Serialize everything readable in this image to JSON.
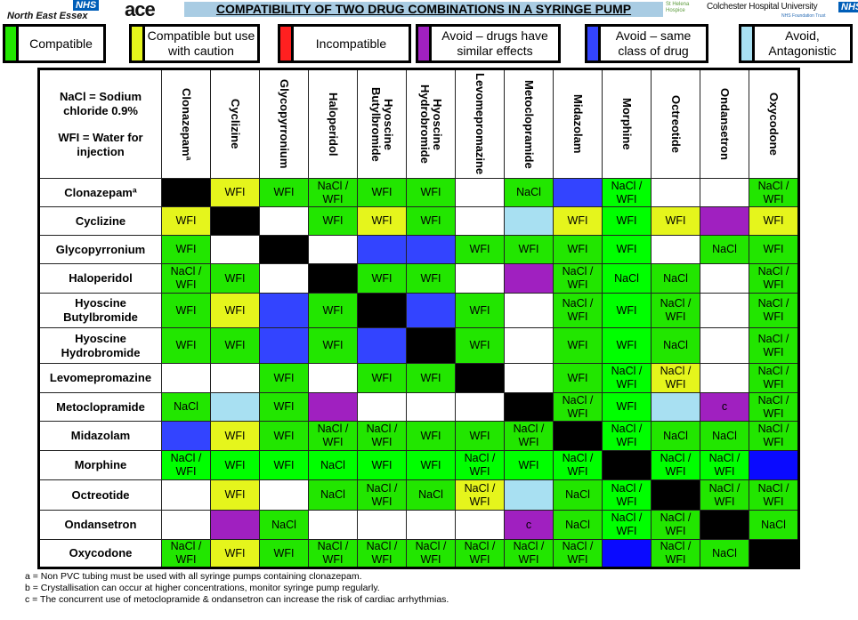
{
  "header": {
    "nhs_badge": "NHS",
    "org_left": "North East Essex",
    "ace_logo": "ace",
    "title": "COMPATIBILITY OF TWO DRUG COMBINATIONS IN A SYRINGE PUMP",
    "hospice": "St Helena Hospice",
    "hospital": "Colchester Hospital University",
    "hospital_sub": "NHS Foundation Trust",
    "nhs_badge_right": "NHS"
  },
  "colors": {
    "g": "#22e600",
    "G": "#00ff00",
    "y": "#e5f51c",
    "r": "#ff2020",
    "p": "#a020c0",
    "b": "#3344ff",
    "B": "#0a0aff",
    "l": "#a8e0f2",
    "k": "#000000",
    "w": "#ffffff"
  },
  "legend": [
    {
      "color": "#22e600",
      "label": "Compatible"
    },
    {
      "color": "#e5f51c",
      "label": "Compatible but use with caution"
    },
    {
      "color": "#ff2020",
      "label": "Incompatible"
    },
    {
      "color": "#a020c0",
      "label": "Avoid – drugs have similar  effects"
    },
    {
      "color": "#3344ff",
      "label": "Avoid – same class of drug"
    },
    {
      "color": "#a8e0f2",
      "label": "Avoid, Antagonistic"
    }
  ],
  "table": {
    "corner_line1": "NaCl = Sodium chloride 0.9%",
    "corner_line2": "WFI = Water for injection",
    "columns": [
      "Clonazepamª",
      "Cyclizine",
      "Glycopyrronium",
      "Haloperidol",
      "Hyoscine\nButylbromide",
      "Hyoscine\nHydrobromide",
      "Levomepromazine",
      "Metoclopramide",
      "Midazolam",
      "Morphine",
      "Octreotide",
      "Ondansetron",
      "Oxycodone"
    ],
    "rows": [
      {
        "drug": "Clonazepamª",
        "cells": [
          [
            "k",
            ""
          ],
          [
            "y",
            "WFI"
          ],
          [
            "g",
            "WFI"
          ],
          [
            "g",
            "NaCl /\nWFI"
          ],
          [
            "g",
            "WFI"
          ],
          [
            "g",
            "WFI"
          ],
          [
            "w",
            ""
          ],
          [
            "g",
            "NaCl"
          ],
          [
            "b",
            ""
          ],
          [
            "G",
            "NaCl /\nWFI"
          ],
          [
            "w",
            ""
          ],
          [
            "w",
            ""
          ],
          [
            "g",
            "NaCl /\nWFI"
          ]
        ]
      },
      {
        "drug": "Cyclizine",
        "cells": [
          [
            "y",
            "WFI"
          ],
          [
            "k",
            ""
          ],
          [
            "w",
            ""
          ],
          [
            "g",
            "WFI"
          ],
          [
            "y",
            "WFI"
          ],
          [
            "g",
            "WFI"
          ],
          [
            "w",
            ""
          ],
          [
            "l",
            ""
          ],
          [
            "y",
            "WFI"
          ],
          [
            "G",
            "WFI"
          ],
          [
            "y",
            "WFI"
          ],
          [
            "p",
            ""
          ],
          [
            "y",
            "WFI"
          ]
        ]
      },
      {
        "drug": "Glycopyrronium",
        "cells": [
          [
            "g",
            "WFI"
          ],
          [
            "w",
            ""
          ],
          [
            "k",
            ""
          ],
          [
            "w",
            ""
          ],
          [
            "b",
            ""
          ],
          [
            "b",
            ""
          ],
          [
            "g",
            "WFI"
          ],
          [
            "g",
            "WFI"
          ],
          [
            "g",
            "WFI"
          ],
          [
            "G",
            "WFI"
          ],
          [
            "w",
            ""
          ],
          [
            "g",
            "NaCl"
          ],
          [
            "g",
            "WFI"
          ]
        ]
      },
      {
        "drug": "Haloperidol",
        "cells": [
          [
            "g",
            "NaCl /\nWFI"
          ],
          [
            "g",
            "WFI"
          ],
          [
            "w",
            ""
          ],
          [
            "k",
            ""
          ],
          [
            "g",
            "WFI"
          ],
          [
            "g",
            "WFI"
          ],
          [
            "w",
            ""
          ],
          [
            "p",
            ""
          ],
          [
            "g",
            "NaCl /\nWFI"
          ],
          [
            "G",
            "NaCl"
          ],
          [
            "g",
            "NaCl"
          ],
          [
            "w",
            ""
          ],
          [
            "g",
            "NaCl /\nWFI"
          ]
        ]
      },
      {
        "drug": "Hyoscine\nButylbromide",
        "cells": [
          [
            "g",
            "WFI"
          ],
          [
            "y",
            "WFI"
          ],
          [
            "b",
            ""
          ],
          [
            "g",
            "WFI"
          ],
          [
            "k",
            ""
          ],
          [
            "b",
            ""
          ],
          [
            "g",
            "WFI"
          ],
          [
            "w",
            ""
          ],
          [
            "g",
            "NaCl /\nWFI"
          ],
          [
            "G",
            "WFI"
          ],
          [
            "g",
            "NaCl /\nWFI"
          ],
          [
            "w",
            ""
          ],
          [
            "g",
            "NaCl /\nWFI"
          ]
        ]
      },
      {
        "drug": "Hyoscine\nHydrobromide",
        "cells": [
          [
            "g",
            "WFI"
          ],
          [
            "g",
            "WFI"
          ],
          [
            "b",
            ""
          ],
          [
            "g",
            "WFI"
          ],
          [
            "b",
            ""
          ],
          [
            "k",
            ""
          ],
          [
            "g",
            "WFI"
          ],
          [
            "w",
            ""
          ],
          [
            "g",
            "WFI"
          ],
          [
            "G",
            "WFI"
          ],
          [
            "g",
            "NaCl"
          ],
          [
            "w",
            ""
          ],
          [
            "g",
            "NaCl /\nWFI"
          ]
        ]
      },
      {
        "drug": "Levomepromazine",
        "cells": [
          [
            "w",
            ""
          ],
          [
            "w",
            ""
          ],
          [
            "g",
            "WFI"
          ],
          [
            "w",
            ""
          ],
          [
            "g",
            "WFI"
          ],
          [
            "g",
            "WFI"
          ],
          [
            "k",
            ""
          ],
          [
            "w",
            ""
          ],
          [
            "g",
            "WFI"
          ],
          [
            "G",
            "NaCl /\nWFI"
          ],
          [
            "y",
            "NaCl /\nWFI"
          ],
          [
            "w",
            ""
          ],
          [
            "g",
            "NaCl /\nWFI"
          ]
        ]
      },
      {
        "drug": "Metoclopramide",
        "cells": [
          [
            "g",
            "NaCl"
          ],
          [
            "l",
            ""
          ],
          [
            "g",
            "WFI"
          ],
          [
            "p",
            ""
          ],
          [
            "w",
            ""
          ],
          [
            "w",
            ""
          ],
          [
            "w",
            ""
          ],
          [
            "k",
            ""
          ],
          [
            "g",
            "NaCl /\nWFI"
          ],
          [
            "G",
            "WFI"
          ],
          [
            "l",
            ""
          ],
          [
            "p",
            "c"
          ],
          [
            "g",
            "NaCl /\nWFI"
          ]
        ]
      },
      {
        "drug": "Midazolam",
        "cells": [
          [
            "b",
            ""
          ],
          [
            "y",
            "WFI"
          ],
          [
            "g",
            "WFI"
          ],
          [
            "g",
            "NaCl /\nWFI"
          ],
          [
            "g",
            "NaCl /\nWFI"
          ],
          [
            "g",
            "WFI"
          ],
          [
            "g",
            "WFI"
          ],
          [
            "g",
            "NaCl /\nWFI"
          ],
          [
            "k",
            ""
          ],
          [
            "G",
            "NaCl /\nWFI"
          ],
          [
            "g",
            "NaCl"
          ],
          [
            "g",
            "NaCl"
          ],
          [
            "g",
            "NaCl /\nWFI"
          ]
        ]
      },
      {
        "drug": "Morphine",
        "cells": [
          [
            "G",
            "NaCl /\nWFI"
          ],
          [
            "G",
            "WFI"
          ],
          [
            "G",
            "WFI"
          ],
          [
            "G",
            "NaCl"
          ],
          [
            "G",
            "WFI"
          ],
          [
            "G",
            "WFI"
          ],
          [
            "G",
            "NaCl /\nWFI"
          ],
          [
            "G",
            "WFI"
          ],
          [
            "G",
            "NaCl /\nWFI"
          ],
          [
            "k",
            ""
          ],
          [
            "G",
            "NaCl /\nWFI"
          ],
          [
            "G",
            "NaCl /\nWFI"
          ],
          [
            "B",
            ""
          ]
        ]
      },
      {
        "drug": "Octreotide",
        "cells": [
          [
            "w",
            ""
          ],
          [
            "y",
            "WFI"
          ],
          [
            "w",
            ""
          ],
          [
            "g",
            "NaCl"
          ],
          [
            "g",
            "NaCl /\nWFI"
          ],
          [
            "g",
            "NaCl"
          ],
          [
            "y",
            "NaCl /\nWFI"
          ],
          [
            "l",
            ""
          ],
          [
            "g",
            "NaCl"
          ],
          [
            "G",
            "NaCl /\nWFI"
          ],
          [
            "k",
            ""
          ],
          [
            "g",
            "NaCl /\nWFI"
          ],
          [
            "g",
            "NaCl /\nWFI"
          ]
        ]
      },
      {
        "drug": "Ondansetron",
        "cells": [
          [
            "w",
            ""
          ],
          [
            "p",
            ""
          ],
          [
            "g",
            "NaCl"
          ],
          [
            "w",
            ""
          ],
          [
            "w",
            ""
          ],
          [
            "w",
            ""
          ],
          [
            "w",
            ""
          ],
          [
            "p",
            "c"
          ],
          [
            "g",
            "NaCl"
          ],
          [
            "G",
            "NaCl /\nWFI"
          ],
          [
            "g",
            "NaCl /\nWFI"
          ],
          [
            "k",
            ""
          ],
          [
            "g",
            "NaCl"
          ]
        ]
      },
      {
        "drug": "Oxycodone",
        "cells": [
          [
            "g",
            "NaCl /\nWFI"
          ],
          [
            "y",
            "WFI"
          ],
          [
            "g",
            "WFI"
          ],
          [
            "g",
            "NaCl /\nWFI"
          ],
          [
            "g",
            "NaCl /\nWFI"
          ],
          [
            "g",
            "NaCl /\nWFI"
          ],
          [
            "g",
            "NaCl /\nWFI"
          ],
          [
            "g",
            "NaCl /\nWFI"
          ],
          [
            "g",
            "NaCl /\nWFI"
          ],
          [
            "B",
            ""
          ],
          [
            "g",
            "NaCl /\nWFI"
          ],
          [
            "g",
            "NaCl"
          ],
          [
            "k",
            ""
          ]
        ]
      }
    ]
  },
  "notes": [
    "a =  Non PVC tubing must be used with all syringe pumps containing clonazepam.",
    "b =  Crystallisation can occur at higher concentrations, monitor syringe pump regularly.",
    "c =  The concurrent use of metoclopramide & ondansetron can increase the risk of cardiac arrhythmias."
  ]
}
